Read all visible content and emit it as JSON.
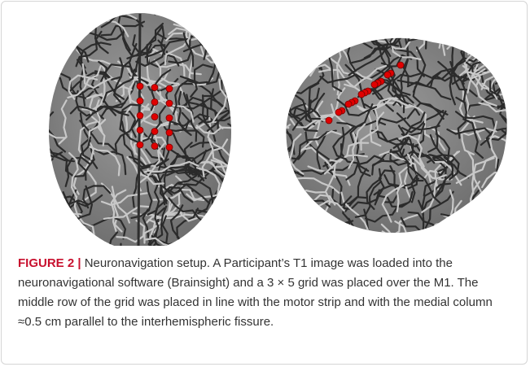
{
  "figure": {
    "label": "FIGURE 2 |",
    "caption": "Neuronavigation setup. A Participant’s T1 image was loaded into the neuronavigational software (Brainsight) and a 3 × 5 grid was placed over the M1. The middle row of the grid was placed in line with the motor strip and with the medial column ≈0.5 cm parallel to the interhemispheric fissure."
  }
}
